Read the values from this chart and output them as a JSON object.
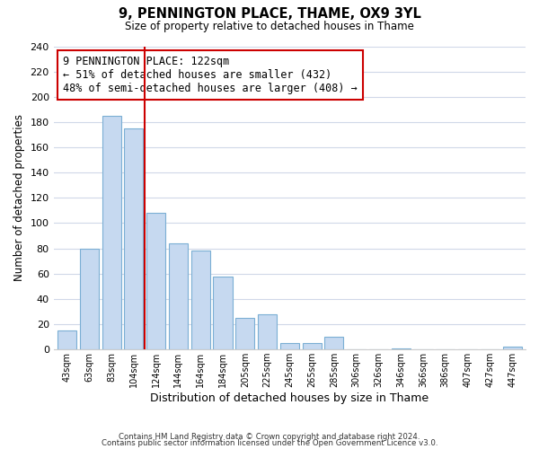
{
  "title": "9, PENNINGTON PLACE, THAME, OX9 3YL",
  "subtitle": "Size of property relative to detached houses in Thame",
  "xlabel": "Distribution of detached houses by size in Thame",
  "ylabel": "Number of detached properties",
  "bar_labels": [
    "43sqm",
    "63sqm",
    "83sqm",
    "104sqm",
    "124sqm",
    "144sqm",
    "164sqm",
    "184sqm",
    "205sqm",
    "225sqm",
    "245sqm",
    "265sqm",
    "285sqm",
    "306sqm",
    "326sqm",
    "346sqm",
    "366sqm",
    "386sqm",
    "407sqm",
    "427sqm",
    "447sqm"
  ],
  "bar_values": [
    15,
    80,
    185,
    175,
    108,
    84,
    78,
    58,
    25,
    28,
    5,
    5,
    10,
    0,
    0,
    1,
    0,
    0,
    0,
    0,
    2
  ],
  "bar_color": "#c6d9f0",
  "bar_edge_color": "#7bafd4",
  "vline_color": "#cc0000",
  "annotation_title": "9 PENNINGTON PLACE: 122sqm",
  "annotation_line1": "← 51% of detached houses are smaller (432)",
  "annotation_line2": "48% of semi-detached houses are larger (408) →",
  "annotation_box_edge": "#cc0000",
  "ylim": [
    0,
    240
  ],
  "yticks": [
    0,
    20,
    40,
    60,
    80,
    100,
    120,
    140,
    160,
    180,
    200,
    220,
    240
  ],
  "footer_line1": "Contains HM Land Registry data © Crown copyright and database right 2024.",
  "footer_line2": "Contains public sector information licensed under the Open Government Licence v3.0.",
  "background_color": "#ffffff",
  "grid_color": "#d0d8e8"
}
